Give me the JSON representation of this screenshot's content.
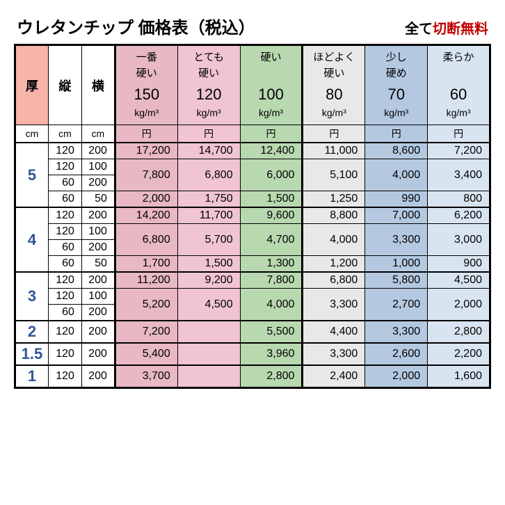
{
  "title": "ウレタンチップ 価格表（税込）",
  "note_prefix": "全て",
  "note_highlight": "切断無料",
  "dim_headers": {
    "thick": "厚",
    "length": "縦",
    "width": "横"
  },
  "unit_headers": {
    "cm": "cm",
    "yen": "円"
  },
  "products": [
    {
      "label": "一番\n硬い",
      "density": "150",
      "unit": "kg/m³",
      "bg": "#e8b8c4"
    },
    {
      "label": "とても\n硬い",
      "density": "120",
      "unit": "kg/m³",
      "bg": "#f0c4d0"
    },
    {
      "label": "硬い\n　",
      "density": "100",
      "unit": "kg/m³",
      "bg": "#b8d8b0"
    },
    {
      "label": "ほどよく\n硬い",
      "density": "80",
      "unit": "kg/m³",
      "bg": "#e8e8e8"
    },
    {
      "label": "少し\n硬め",
      "density": "70",
      "unit": "kg/m³",
      "bg": "#b4c8e0"
    },
    {
      "label": "柔らか\n　",
      "density": "60",
      "unit": "kg/m³",
      "bg": "#d8e4f0"
    }
  ],
  "colors": {
    "thick_header_bg": "#f7b4a8",
    "thick_text": "#2f5597",
    "highlight_text": "#c00000"
  },
  "groups": [
    {
      "thick": "5",
      "rows": [
        {
          "l": "120",
          "w": "200",
          "p": [
            "17,200",
            "14,700",
            "12,400",
            "11,000",
            "8,600",
            "7,200"
          ]
        },
        {
          "l": "120",
          "w": "100",
          "merge": 2,
          "p": [
            "7,800",
            "6,800",
            "6,000",
            "5,100",
            "4,000",
            "3,400"
          ]
        },
        {
          "l": "60",
          "w": "200"
        },
        {
          "l": "60",
          "w": "50",
          "p": [
            "2,000",
            "1,750",
            "1,500",
            "1,250",
            "990",
            "800"
          ]
        }
      ]
    },
    {
      "thick": "4",
      "rows": [
        {
          "l": "120",
          "w": "200",
          "p": [
            "14,200",
            "11,700",
            "9,600",
            "8,800",
            "7,000",
            "6,200"
          ]
        },
        {
          "l": "120",
          "w": "100",
          "merge": 2,
          "p": [
            "6,800",
            "5,700",
            "4,700",
            "4,000",
            "3,300",
            "3,000"
          ]
        },
        {
          "l": "60",
          "w": "200"
        },
        {
          "l": "60",
          "w": "50",
          "p": [
            "1,700",
            "1,500",
            "1,300",
            "1,200",
            "1,000",
            "900"
          ]
        }
      ]
    },
    {
      "thick": "3",
      "rows": [
        {
          "l": "120",
          "w": "200",
          "p": [
            "11,200",
            "9,200",
            "7,800",
            "6,800",
            "5,800",
            "4,500"
          ]
        },
        {
          "l": "120",
          "w": "100",
          "merge": 2,
          "p": [
            "5,200",
            "4,500",
            "4,000",
            "3,300",
            "2,700",
            "2,000"
          ]
        },
        {
          "l": "60",
          "w": "200"
        }
      ]
    },
    {
      "thick": "2",
      "rows": [
        {
          "l": "120",
          "w": "200",
          "p": [
            "7,200",
            "",
            "5,500",
            "4,400",
            "3,300",
            "2,800"
          ]
        }
      ]
    },
    {
      "thick": "1.5",
      "rows": [
        {
          "l": "120",
          "w": "200",
          "p": [
            "5,400",
            "",
            "3,960",
            "3,300",
            "2,600",
            "2,200"
          ]
        }
      ]
    },
    {
      "thick": "1",
      "rows": [
        {
          "l": "120",
          "w": "200",
          "p": [
            "3,700",
            "",
            "2,800",
            "2,400",
            "2,000",
            "1,600"
          ]
        }
      ]
    }
  ]
}
